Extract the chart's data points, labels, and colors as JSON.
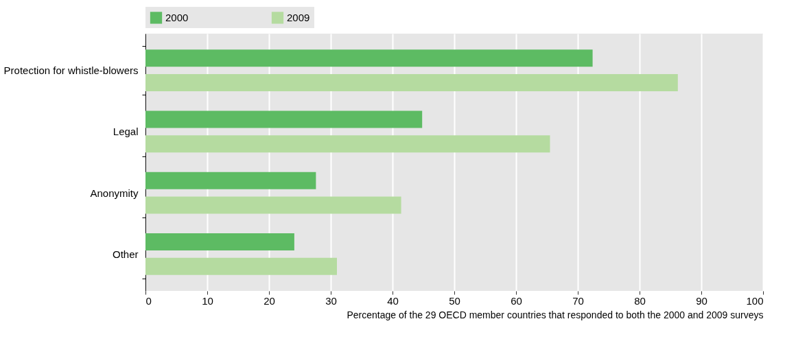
{
  "chart_data": {
    "type": "bar",
    "orientation": "horizontal",
    "categories": [
      "Protection for whistle-blowers",
      "Legal",
      "Anonymity",
      "Other"
    ],
    "series": [
      {
        "name": "2000",
        "color": "#5dbb63",
        "values": [
          72.4,
          44.8,
          27.6,
          24.1
        ]
      },
      {
        "name": "2009",
        "color": "#b5dba0",
        "values": [
          86.2,
          65.5,
          41.4,
          31.0
        ]
      }
    ],
    "xlim": [
      0,
      100
    ],
    "xticks": [
      0,
      10,
      20,
      30,
      40,
      50,
      60,
      70,
      80,
      90,
      100
    ],
    "grid": "x",
    "legend": "top",
    "xlabel": "Percentage of the 29 OECD member countries that responded  to both the 2000 and 2009 surveys"
  }
}
